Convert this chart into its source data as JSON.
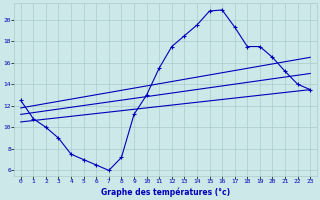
{
  "xlabel": "Graphe des températures (°c)",
  "bg_color": "#cce8e8",
  "line_color": "#0000bb",
  "grid_color": "#aacccc",
  "xlim": [
    -0.5,
    23.5
  ],
  "ylim": [
    5.5,
    21.5
  ],
  "yticks": [
    6,
    8,
    10,
    12,
    14,
    16,
    18,
    20
  ],
  "xticks": [
    0,
    1,
    2,
    3,
    4,
    5,
    6,
    7,
    8,
    9,
    10,
    11,
    12,
    13,
    14,
    15,
    16,
    17,
    18,
    19,
    20,
    21,
    22,
    23
  ],
  "main_x": [
    0,
    1,
    2,
    3,
    4,
    5,
    6,
    7,
    8,
    9,
    10,
    11,
    12,
    13,
    14,
    15,
    16,
    17,
    18,
    19,
    20,
    21,
    22,
    23
  ],
  "main_y": [
    12.5,
    10.8,
    10.0,
    9.0,
    7.5,
    7.0,
    6.5,
    6.0,
    7.2,
    11.2,
    13.0,
    15.5,
    17.5,
    18.5,
    19.5,
    20.8,
    20.9,
    19.3,
    17.5,
    17.5,
    16.5,
    15.2,
    14.0,
    13.5
  ],
  "trend1_x": [
    0,
    23
  ],
  "trend1_y": [
    11.8,
    16.5
  ],
  "trend2_x": [
    0,
    23
  ],
  "trend2_y": [
    10.5,
    13.5
  ],
  "trend3_x": [
    0,
    23
  ],
  "trend3_y": [
    11.2,
    15.0
  ]
}
